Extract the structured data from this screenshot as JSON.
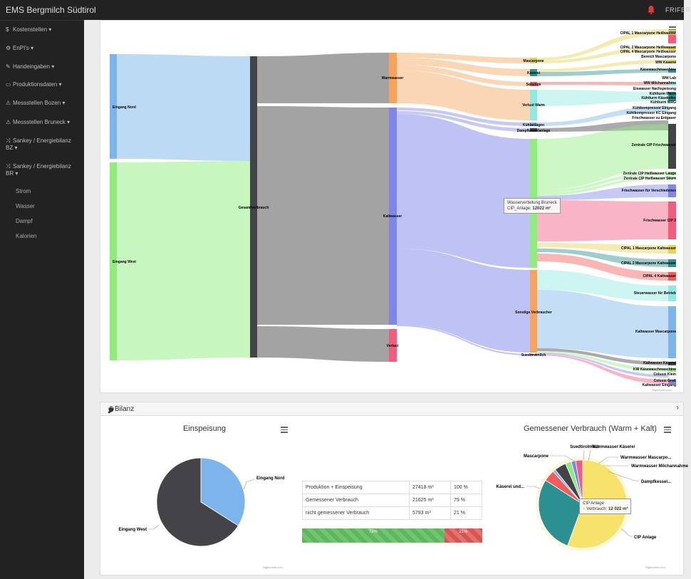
{
  "topbar": {
    "brand": "EMS Bergmilch Südtirol",
    "user": "FRIFER"
  },
  "sidebar": {
    "items": [
      {
        "icon": "$",
        "icon_name": "dollar-icon",
        "label": "Kostenstellen ▾"
      },
      {
        "icon": "⚙",
        "icon_name": "dashboard-icon",
        "label": "EnPI's ▾"
      },
      {
        "icon": "✎",
        "icon_name": "pencil-icon",
        "label": "Handeingaben ▾"
      },
      {
        "icon": "▭",
        "icon_name": "truck-icon",
        "label": "Produktionsdaten ▾"
      },
      {
        "icon": "⚠",
        "icon_name": "sitemap-icon",
        "label": "Messstellen Bozen ▾"
      },
      {
        "icon": "⚠",
        "icon_name": "sitemap-icon",
        "label": "Messstellen Bruneck ▾"
      },
      {
        "icon": "⤨",
        "icon_name": "random-icon",
        "label": "Sankey / Energiebilanz BZ ▾"
      },
      {
        "icon": "⤨",
        "icon_name": "random-icon",
        "label": "Sankey / Energiebilanz BR ▾"
      }
    ],
    "subitems": [
      "Strom",
      "Wasser",
      "Dampf",
      "Kalorien"
    ]
  },
  "sankey": {
    "sources": [
      {
        "label": "Eingang Nord",
        "color": "#7cb5ec"
      },
      {
        "label": "Eingang West",
        "color": "#90ed7d"
      }
    ],
    "total": {
      "label": "Gesamtverbrauch",
      "color": "#434348"
    },
    "split": [
      {
        "label": "Warmwasser",
        "color": "#f7a35c"
      },
      {
        "label": "Kaltwasser",
        "color": "#8085e9"
      },
      {
        "label": "Verlust",
        "color": "#f15c80"
      }
    ],
    "mid": [
      {
        "label": "Mascarpone"
      },
      {
        "label": "Käserei"
      },
      {
        "label": "Sonstige"
      },
      {
        "label": "Verlust Warm"
      },
      {
        "label": "Kühlanlagen"
      },
      {
        "label": "Dampfkesselanlage"
      },
      {
        "label": "Sonstige Verbraucher"
      },
      {
        "label": "Suedtirolmilch"
      }
    ],
    "right": [
      "CIPAL 1 Mascarpone Heißwasser",
      "CIPAL 2 Mascarpone Heißwasser",
      "CIPAL 4 Mascarpone Heißwasser",
      "Bereich Mascarpone",
      "WW Käserei",
      "Käsewaschmaschine",
      "WW Lab",
      "WW Milchannahme",
      "Eiswasser Nachspeisung",
      "Kühlturm Warm",
      "Kühlturm Käsekeller",
      "Kühlturm WRG",
      "Kühlkompressor Eingang",
      "Kühlkompressor KC Eingang",
      "Frischwasser zu Entgaser",
      "Zentrale CIP Frischwasser",
      "Zentrale CIP Heißwasser Lauge",
      "Zentrale CIP Heißwasser Säure",
      "Frischwasser für Verschiedenes",
      "Frischwasser CIP 3",
      "CIPAL 1 Mascarpone Kaltwasser",
      "CIPAL 2 Mascarpone Kaltwasser",
      "CIPAL 4 Kaltwasser",
      "Steuerwasser für Betrieb",
      "Kaltwasser Mascarpone",
      "Kaltwasser Käserei",
      "KW Käsewaschmaschine",
      "Colussi Klein",
      "Colussi Groß",
      "Kaltwasser Eingang"
    ],
    "tooltip": {
      "line1": "Wasserverteilung Bruneck",
      "line2_label": "CIP_Anlage:",
      "line2_value": "12022 m³"
    },
    "credits": "Highcharts.com"
  },
  "bilanz": {
    "title": "Bilanz",
    "pie1": {
      "title": "Einspeisung",
      "credits": "Highcharts.com",
      "chart_data": {
        "type": "pie",
        "slices": [
          {
            "name": "Eingang Nord",
            "value": 34,
            "color": "#7cb5ec"
          },
          {
            "name": "Eingang West",
            "value": 66,
            "color": "#434348"
          }
        ]
      }
    },
    "table": [
      {
        "label": "Produktion + Einspeisung",
        "value": "27418 m³",
        "pct": "100 %"
      },
      {
        "label": "Gemessener Verbrauch",
        "value": "21625 m³",
        "pct": "79 %"
      },
      {
        "label": "nicht gemessener Verbrauch",
        "value": "5793 m³",
        "pct": "21 %"
      }
    ],
    "progress": [
      {
        "label": "79%",
        "value": 79
      },
      {
        "label": "21%",
        "value": 21
      }
    ],
    "pie2": {
      "title": "Gemessener Verbrauch (Warm + Kalt)",
      "credits": "Highcharts.com",
      "tooltip": {
        "line1": "CIP Anlage",
        "line2_label": "Verbrauch:",
        "line2_value": "12 022 m³"
      },
      "chart_data": {
        "type": "pie",
        "slices": [
          {
            "name": "CIP Anlage",
            "value": 55.6,
            "color": "#f7e36b"
          },
          {
            "name": "Käserei und...",
            "value": 28.5,
            "color": "#2b908f"
          },
          {
            "name": "Mascarpone",
            "value": 4.2,
            "color": "#f45b5b"
          },
          {
            "name": "Suedtirolmilch",
            "value": 1.0,
            "color": "#7cb5ec"
          },
          {
            "name": "Warmwasser Käserei",
            "value": 4.3,
            "color": "#434348"
          },
          {
            "name": "Warmwasser Mascarpo...",
            "value": 2.2,
            "color": "#90ed7d"
          },
          {
            "name": "Warmwasser Milchannahme",
            "value": 1.6,
            "color": "#8085e9"
          },
          {
            "name": "Dampfkessel...",
            "value": 2.6,
            "color": "#f15c80"
          }
        ]
      }
    }
  }
}
